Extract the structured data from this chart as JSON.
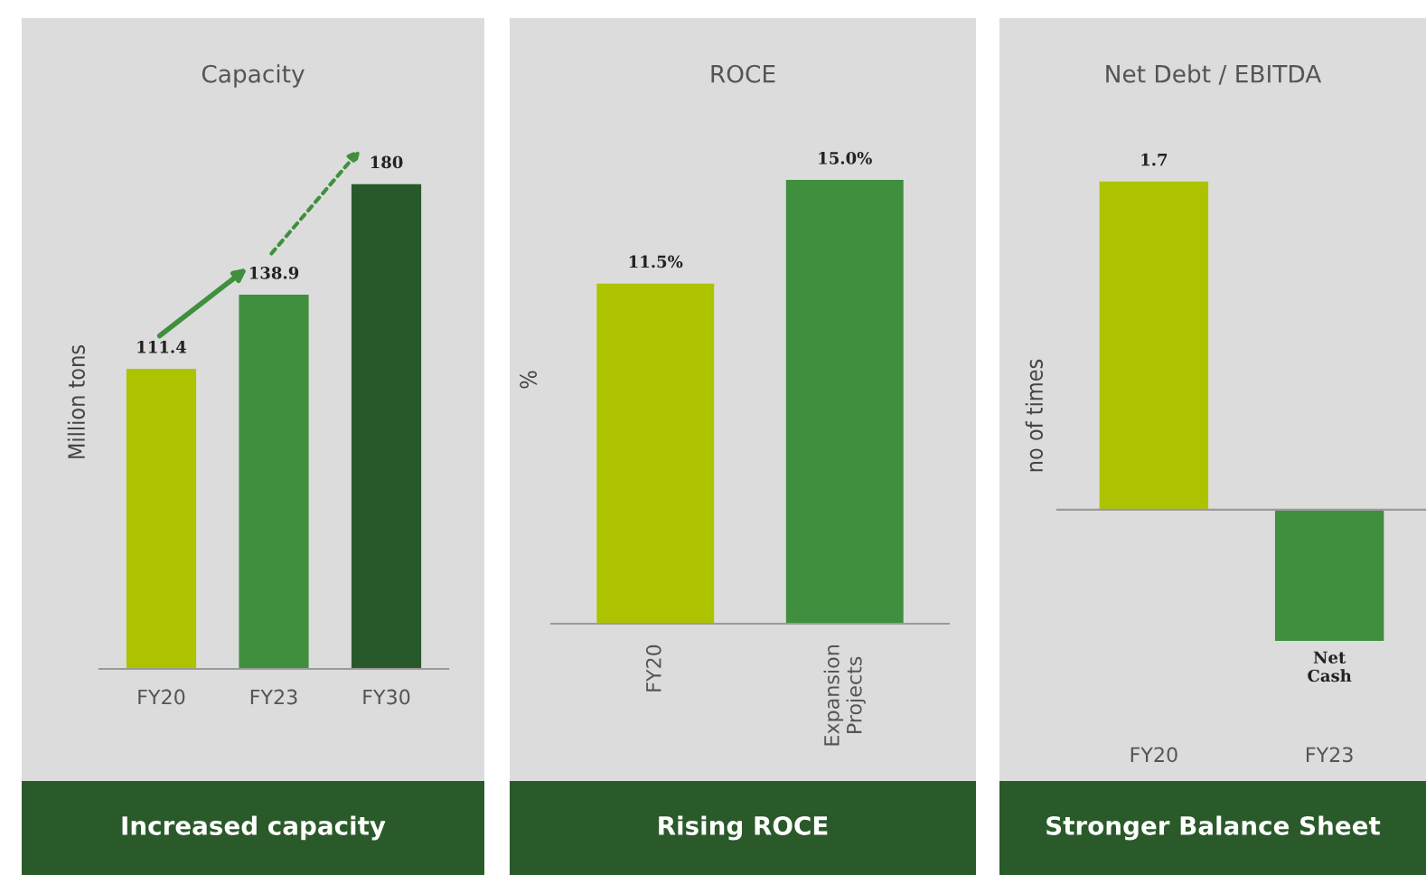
{
  "chart_data": [
    {
      "type": "bar",
      "title": "Capacity",
      "ylabel": "Million tons",
      "categories": [
        "FY20",
        "FY23",
        "FY30"
      ],
      "values": [
        111.4,
        138.9,
        180
      ],
      "colors": [
        "#aec300",
        "#3f8f3f",
        "#28592a"
      ],
      "data_labels": true,
      "tick_labels": "x",
      "annotations": [
        "Increased capacity"
      ]
    },
    {
      "type": "bar",
      "title": "ROCE",
      "ylabel": "%",
      "categories": [
        "FY20",
        "Expansion\nProjects"
      ],
      "values": [
        11.5,
        15.0
      ],
      "colors": [
        "#aec300",
        "#3f8f3f"
      ],
      "value_labels": [
        "11.5%",
        "15.0%"
      ],
      "tick_labels": "x",
      "annotations": [
        "Rising ROCE"
      ]
    },
    {
      "type": "bar",
      "title": "Net Debt / EBITDA",
      "ylabel": "no of times",
      "categories": [
        "FY20",
        "FY23"
      ],
      "values": [
        1.7,
        -0.68
      ],
      "colors": [
        "#aec300",
        "#3f8f3f"
      ],
      "value_labels": [
        "1.7",
        "Net\nCash"
      ],
      "tick_labels": "x",
      "annotations": [
        "Stronger Balance Sheet"
      ]
    }
  ]
}
